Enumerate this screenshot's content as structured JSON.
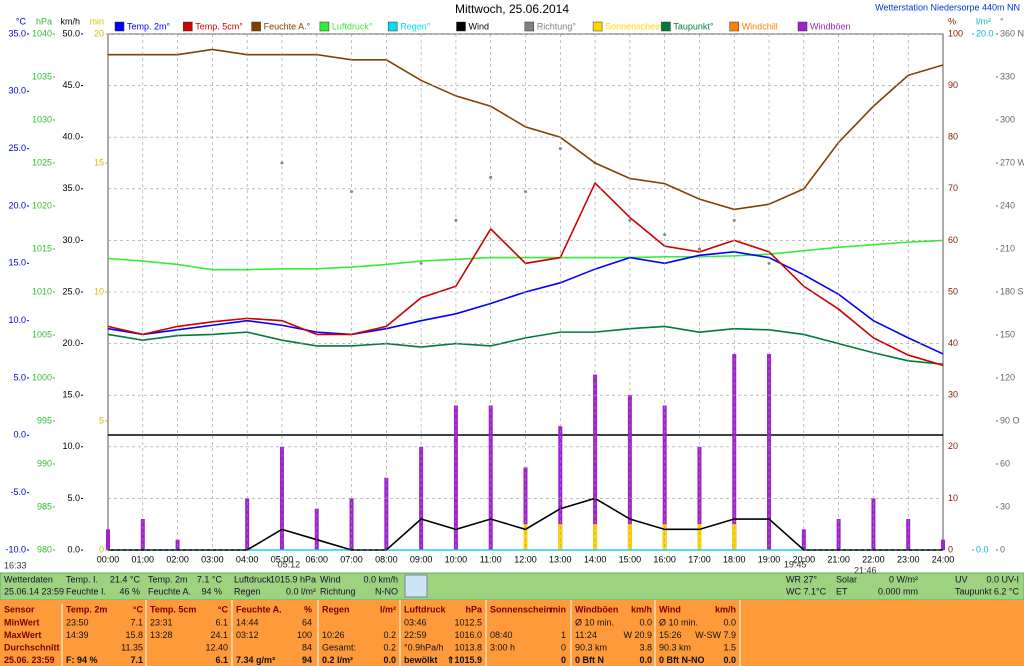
{
  "chart_data": {
    "type": "line",
    "title": "Mittwoch, 25.06.2014",
    "subtitle": "Wetterstation Niedersorpe 440m NN",
    "time_label": "16:33",
    "annotations": [
      "05:12",
      "19:45",
      "21:46"
    ],
    "grid": true,
    "categories": [
      "00:00",
      "01:00",
      "02:00",
      "03:00",
      "04:00",
      "05:00",
      "06:00",
      "07:00",
      "08:00",
      "09:00",
      "10:00",
      "11:00",
      "12:00",
      "13:00",
      "14:00",
      "15:00",
      "16:00",
      "17:00",
      "18:00",
      "19:00",
      "20:00",
      "21:00",
      "22:00",
      "23:00",
      "24:00"
    ],
    "axes": [
      {
        "unit": "°C",
        "color": "#0000cc",
        "lim": [
          -10,
          35
        ],
        "ticks": [
          {
            "value": 35,
            "label": "35.0"
          },
          {
            "value": 30,
            "label": "30.0"
          },
          {
            "value": 25,
            "label": "25.0"
          },
          {
            "value": 20,
            "label": "20.0"
          },
          {
            "value": 15,
            "label": "15.0"
          },
          {
            "value": 10,
            "label": "10.0"
          },
          {
            "value": 5,
            "label": "5.0"
          },
          {
            "value": 0,
            "label": "0.0"
          },
          {
            "value": -5,
            "label": "-5.0"
          },
          {
            "value": -10,
            "label": "-10.0"
          }
        ]
      },
      {
        "unit": "hPa",
        "color": "#33bb33",
        "lim": [
          980,
          1040
        ],
        "ticks": [
          1040,
          1035,
          1030,
          1025,
          1020,
          1015,
          1010,
          1005,
          1000,
          995,
          990,
          985,
          980
        ]
      },
      {
        "unit": "km/h",
        "color": "#000000",
        "lim": [
          0,
          50
        ],
        "ticks": [
          {
            "value": 50,
            "label": "50.0"
          },
          {
            "value": 45,
            "label": "45.0"
          },
          {
            "value": 40,
            "label": "40.0"
          },
          {
            "value": 35,
            "label": "35.0"
          },
          {
            "value": 30,
            "label": "30.0"
          },
          {
            "value": 25,
            "label": "25.0"
          },
          {
            "value": 20,
            "label": "20.0"
          },
          {
            "value": 15,
            "label": "15.0"
          },
          {
            "value": 10,
            "label": "10.0"
          },
          {
            "value": 5,
            "label": "5.0"
          },
          {
            "value": 0,
            "label": "0.0"
          }
        ]
      },
      {
        "unit": "min",
        "color": "#d4c000",
        "lim": [
          0,
          20
        ],
        "ticks": [
          20,
          15,
          10,
          5,
          0
        ]
      },
      {
        "unit": "%",
        "color": "#802000",
        "lim": [
          0,
          100
        ],
        "ticks": [
          100,
          90,
          80,
          70,
          60,
          50,
          40,
          30,
          20,
          10,
          0
        ],
        "grid": true
      },
      {
        "unit": "l/m²",
        "color": "#00bbcc",
        "lim": [
          0,
          20
        ],
        "ticks": [
          {
            "value": 20,
            "label": "20.0"
          },
          {
            "value": 0,
            "label": "0.0"
          }
        ]
      },
      {
        "unit": "°",
        "color": "#666666",
        "lim": [
          0,
          360
        ],
        "ticks": [
          {
            "value": 360,
            "label": "360 N"
          },
          330,
          300,
          {
            "value": 270,
            "label": "270 W"
          },
          240,
          210,
          {
            "value": 180,
            "label": "180 S"
          },
          150,
          120,
          {
            "value": 90,
            "label": "90 O"
          },
          60,
          30,
          0
        ]
      }
    ],
    "series": [
      {
        "name": "Temp. 2m°",
        "color": "#0000ff",
        "axis": 0,
        "style": "line",
        "values": [
          9.3,
          8.8,
          9.2,
          9.6,
          10.0,
          9.6,
          9.0,
          8.8,
          9.3,
          10.0,
          10.6,
          11.5,
          12.5,
          13.3,
          14.5,
          15.5,
          15.0,
          15.7,
          16.0,
          15.5,
          14.0,
          12.3,
          10.0,
          8.5,
          7.1
        ]
      },
      {
        "name": "Temp. 5cm°",
        "color": "#cc0000",
        "axis": 0,
        "style": "line",
        "values": [
          9.5,
          8.8,
          9.5,
          9.9,
          10.2,
          10.0,
          8.8,
          8.8,
          9.5,
          12.0,
          13.0,
          18.0,
          15.0,
          15.5,
          22.0,
          19.0,
          16.5,
          16.0,
          17.0,
          16.0,
          13.0,
          11.0,
          8.5,
          7.0,
          6.1
        ]
      },
      {
        "name": "Feuchte A.°",
        "color": "#804000",
        "axis": 4,
        "style": "line",
        "values": [
          96,
          96,
          96,
          97,
          96,
          96,
          96,
          95,
          95,
          91,
          88,
          86,
          82,
          80,
          75,
          72,
          71,
          68,
          66,
          67,
          70,
          79,
          86,
          92,
          94
        ]
      },
      {
        "name": "Luftdruck°",
        "color": "#33ee33",
        "axis": 1,
        "style": "line",
        "values": [
          1013.9,
          1013.6,
          1013.2,
          1012.6,
          1012.6,
          1012.7,
          1012.7,
          1012.9,
          1013.2,
          1013.6,
          1013.8,
          1014.0,
          1014.0,
          1014.0,
          1014.0,
          1014.0,
          1014.1,
          1014.1,
          1014.2,
          1014.4,
          1014.8,
          1015.2,
          1015.5,
          1015.8,
          1016.0
        ]
      },
      {
        "name": "Regen°",
        "color": "#00ddee",
        "axis": 5,
        "style": "line",
        "values": [
          0,
          0,
          0,
          0,
          0,
          0,
          0,
          0,
          0,
          0,
          0,
          0,
          0,
          0,
          0,
          0,
          0,
          0,
          0,
          0,
          0,
          0,
          0,
          0,
          0
        ]
      },
      {
        "name": "Wind",
        "color": "#000000",
        "axis": 2,
        "style": "line",
        "values": [
          0,
          0,
          0,
          0,
          0,
          2,
          1,
          0,
          0,
          3,
          2,
          3,
          2,
          4,
          5,
          3,
          2,
          2,
          3,
          3,
          0,
          0,
          0,
          0,
          0
        ]
      },
      {
        "name": "Richtung°",
        "color": "#808080",
        "axis": 6,
        "style": "dots",
        "values": [
          null,
          null,
          null,
          null,
          null,
          270,
          null,
          250,
          null,
          200,
          230,
          260,
          250,
          280,
          270,
          230,
          220,
          210,
          230,
          200,
          null,
          null,
          null,
          null,
          null
        ]
      },
      {
        "name": "Sonnenschein",
        "color": "#ffd700",
        "axis": 3,
        "style": "bar",
        "values": [
          0,
          0,
          0,
          0,
          0,
          0,
          0,
          0,
          0,
          0,
          0,
          0,
          1,
          1,
          1,
          1,
          1,
          1,
          1,
          0,
          0,
          0,
          0,
          0,
          0
        ]
      },
      {
        "name": "Taupunkt°",
        "color": "#007a3d",
        "axis": 0,
        "style": "line",
        "values": [
          8.8,
          8.3,
          8.7,
          8.8,
          9.0,
          8.3,
          7.8,
          7.8,
          8.0,
          7.7,
          8.0,
          7.8,
          8.5,
          9.0,
          9.0,
          9.3,
          9.5,
          9.0,
          9.3,
          9.2,
          8.8,
          8.0,
          7.2,
          6.5,
          6.2
        ]
      },
      {
        "name": "Windchill",
        "color": "#ff8000",
        "axis": 0,
        "style": "line",
        "values": [
          null,
          null,
          null,
          null,
          null,
          null,
          null,
          null,
          null,
          null,
          null,
          null,
          null,
          null,
          null,
          null,
          null,
          null,
          null,
          null,
          null,
          null,
          null,
          null,
          null
        ]
      },
      {
        "name": "Windböen",
        "color": "#a020d0",
        "axis": 2,
        "style": "bar",
        "values": [
          2,
          3,
          1,
          0,
          5,
          10,
          4,
          5,
          7,
          10,
          14,
          14,
          8,
          12,
          17,
          15,
          14,
          10,
          19,
          19,
          2,
          3,
          5,
          3,
          1
        ]
      }
    ]
  },
  "status": [
    [
      "Wetterdaten",
      "Temp. I.",
      "21.4 °C",
      "Temp. 2m",
      "7.1 °C",
      "Luftdruck",
      "1015.9 hPa",
      "Wind",
      "0.0 km/h",
      "WR 27°",
      "Solar",
      "0 W/m²",
      "UV",
      "0.0 UV-I"
    ],
    [
      "25.06.14 23:59",
      "Feuchte I.",
      "46 %",
      "Feuchte A.",
      "94 %",
      "Regen",
      "0.0 l/m²",
      "Richtung",
      "N-NO",
      "WC 7.1°C",
      "ET",
      "0.000 mm",
      "Taupunkt",
      "6.2 °C"
    ]
  ],
  "table": {
    "header": [
      "Sensor",
      "Temp. 2m",
      "°C",
      "Temp. 5cm",
      "°C",
      "Feuchte A.",
      "%",
      "Regen",
      "l/m²",
      "Luftdruck",
      "hPa",
      "Sonnenschein",
      "min",
      "Windböen",
      "km/h",
      "Wind",
      "km/h"
    ],
    "rows": [
      [
        "MinWert",
        "23:50",
        "7.1",
        "23:31",
        "6.1",
        "14:44",
        "64",
        null,
        null,
        "03:46",
        "1012.5",
        null,
        null,
        "Ø 10 min.",
        "0.0",
        "Ø 10 min.",
        "0.0"
      ],
      [
        "MaxWert",
        "14:39",
        "15.8",
        "13:28",
        "24.1",
        "03:12",
        "100",
        "10:26",
        "0.2",
        "22:59",
        "1016.0",
        "08:40",
        "1",
        "11:24",
        "W 20.9",
        "15:26",
        "W-SW 7.9"
      ],
      [
        "Durchschnitt",
        null,
        "11.35",
        null,
        "12.40",
        null,
        "84",
        "Gesamt:",
        "0.2",
        "°0.9hPa/h",
        "1013.8",
        "3:00 h",
        "0",
        "90.3 km",
        "3.8",
        "90.3 km",
        "1.5"
      ],
      [
        "25.06. 23:59",
        "F: 94 %",
        "7.1",
        null,
        "6.1",
        "7.34 g/m³",
        "94",
        "0.2 l/m²",
        "0.0",
        "bewölkt",
        "⇑1015.9",
        null,
        "0",
        "0 Bft N",
        "0.0",
        "0 Bft N-NO",
        "0.0"
      ]
    ]
  }
}
